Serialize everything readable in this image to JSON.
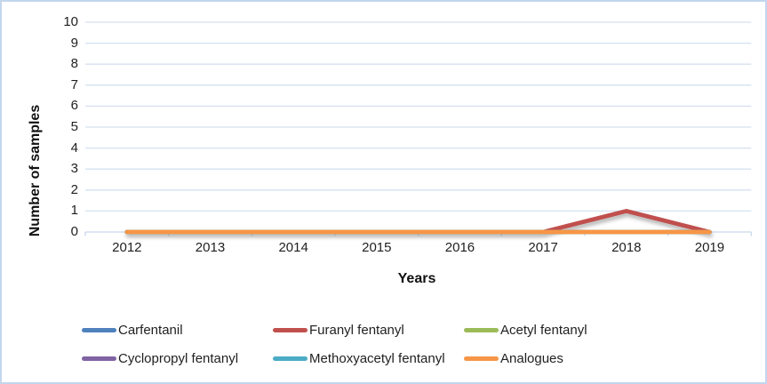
{
  "chart_data": {
    "type": "line",
    "title": "",
    "xlabel": "Years",
    "ylabel": "Number of samples",
    "categories": [
      "2012",
      "2013",
      "2014",
      "2015",
      "2016",
      "2017",
      "2018",
      "2019"
    ],
    "series": [
      {
        "name": "Carfentanil",
        "color": "#4F81BD",
        "values": [
          0,
          0,
          0,
          0,
          0,
          0,
          0,
          0
        ]
      },
      {
        "name": "Furanyl fentanyl",
        "color": "#C0504D",
        "values": [
          0,
          0,
          0,
          0,
          0,
          0,
          1,
          0
        ],
        "shadow": true
      },
      {
        "name": "Acetyl fentanyl",
        "color": "#9BBB59",
        "values": [
          0,
          0,
          0,
          0,
          0,
          0,
          0,
          0
        ]
      },
      {
        "name": "Cyclopropyl fentanyl",
        "color": "#8064A2",
        "values": [
          0,
          0,
          0,
          0,
          0,
          0,
          0,
          0
        ]
      },
      {
        "name": "Methoxyacetyl fentanyl",
        "color": "#4BACC6",
        "values": [
          0,
          0,
          0,
          0,
          0,
          0,
          0,
          0
        ]
      },
      {
        "name": "Analogues",
        "color": "#F79646",
        "values": [
          0,
          0,
          0,
          0,
          0,
          0,
          0,
          0
        ]
      }
    ],
    "ylim": [
      0,
      10
    ],
    "ytick_step": 1,
    "grid": true,
    "legend_position": "bottom"
  },
  "style_colors": {
    "gridline": "#d5e1ef",
    "axis_line": "#c6d7eb",
    "frame_border": "#c3d6ec",
    "text": "#1f1f1f"
  }
}
